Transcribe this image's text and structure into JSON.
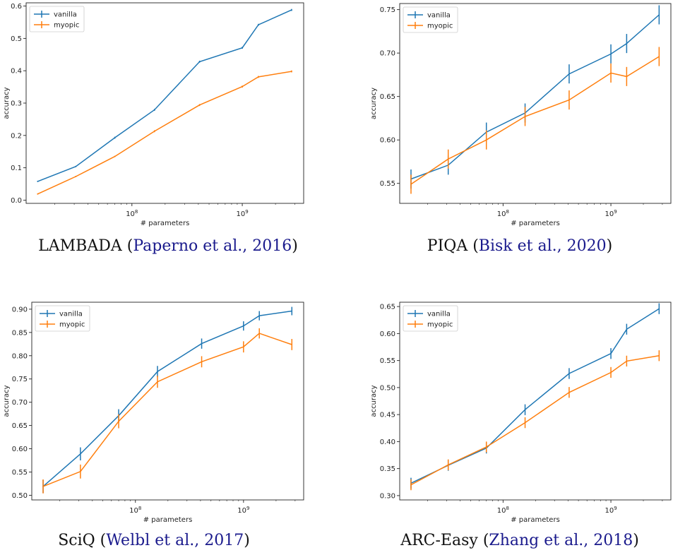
{
  "colors": {
    "vanilla": "#1f77b4",
    "myopic": "#ff7f0e"
  },
  "chart_data": [
    {
      "type": "line",
      "title": "",
      "caption": {
        "name": "LAMBADA",
        "cite": "Paperno et al., 2016"
      },
      "xlabel": "# parameters",
      "ylabel": "accuracy",
      "xscale": "log",
      "xlim": [
        11000000,
        3600000000
      ],
      "ylim": [
        -0.01,
        0.61
      ],
      "yticks": [
        0.0,
        0.1,
        0.2,
        0.3,
        0.4,
        0.5,
        0.6
      ],
      "ytick_labels": [
        "0.0",
        "0.1",
        "0.2",
        "0.3",
        "0.4",
        "0.5",
        "0.6"
      ],
      "xticks": [
        100000000,
        1000000000
      ],
      "xtick_labels": [
        "10^8",
        "10^9"
      ],
      "x": [
        14000000,
        31000000,
        70000000,
        160000000,
        410000000,
        1000000000,
        1400000000,
        2800000000
      ],
      "legend": "top-left",
      "series": [
        {
          "name": "vanilla",
          "values": [
            0.058,
            0.104,
            0.193,
            0.279,
            0.428,
            0.471,
            0.542,
            0.588
          ],
          "errors": [
            0.002,
            0.002,
            0.003,
            0.003,
            0.003,
            0.003,
            0.003,
            0.003
          ]
        },
        {
          "name": "myopic",
          "values": [
            0.019,
            0.073,
            0.135,
            0.213,
            0.294,
            0.351,
            0.381,
            0.398
          ],
          "errors": [
            0.002,
            0.002,
            0.002,
            0.003,
            0.003,
            0.003,
            0.003,
            0.003
          ]
        }
      ]
    },
    {
      "type": "line",
      "title": "",
      "caption": {
        "name": "PIQA",
        "cite": "Bisk et al., 2020"
      },
      "xlabel": "# parameters",
      "ylabel": "accuracy",
      "xscale": "log",
      "xlim": [
        11000000,
        3600000000
      ],
      "ylim": [
        0.527,
        0.757
      ],
      "yticks": [
        0.55,
        0.6,
        0.65,
        0.7,
        0.75
      ],
      "ytick_labels": [
        "0.55",
        "0.60",
        "0.65",
        "0.70",
        "0.75"
      ],
      "xticks": [
        100000000,
        1000000000
      ],
      "xtick_labels": [
        "10^8",
        "10^9"
      ],
      "x": [
        14000000,
        31000000,
        70000000,
        160000000,
        410000000,
        1000000000,
        1400000000,
        2800000000
      ],
      "legend": "top-left",
      "series": [
        {
          "name": "vanilla",
          "values": [
            0.555,
            0.571,
            0.609,
            0.631,
            0.676,
            0.699,
            0.711,
            0.744
          ],
          "errors": [
            0.011,
            0.011,
            0.011,
            0.011,
            0.011,
            0.011,
            0.011,
            0.011
          ]
        },
        {
          "name": "myopic",
          "values": [
            0.549,
            0.578,
            0.6,
            0.627,
            0.646,
            0.677,
            0.673,
            0.696
          ],
          "errors": [
            0.011,
            0.011,
            0.011,
            0.011,
            0.011,
            0.011,
            0.011,
            0.011
          ]
        }
      ]
    },
    {
      "type": "line",
      "title": "",
      "caption": {
        "name": "SciQ",
        "cite": "Welbl et al., 2017"
      },
      "xlabel": "# parameters",
      "ylabel": "accuracy",
      "xscale": "log",
      "xlim": [
        11000000,
        3600000000
      ],
      "ylim": [
        0.49,
        0.915
      ],
      "yticks": [
        0.5,
        0.55,
        0.6,
        0.65,
        0.7,
        0.75,
        0.8,
        0.85,
        0.9
      ],
      "ytick_labels": [
        "0.50",
        "0.55",
        "0.60",
        "0.65",
        "0.70",
        "0.75",
        "0.80",
        "0.85",
        "0.90"
      ],
      "xticks": [
        100000000,
        1000000000
      ],
      "xtick_labels": [
        "10^8",
        "10^9"
      ],
      "x": [
        14000000,
        31000000,
        70000000,
        160000000,
        410000000,
        1000000000,
        1400000000,
        2800000000
      ],
      "legend": "top-left",
      "series": [
        {
          "name": "vanilla",
          "values": [
            0.519,
            0.589,
            0.671,
            0.766,
            0.826,
            0.864,
            0.886,
            0.896
          ],
          "errors": [
            0.014,
            0.014,
            0.014,
            0.012,
            0.011,
            0.01,
            0.01,
            0.009
          ]
        },
        {
          "name": "myopic",
          "values": [
            0.519,
            0.551,
            0.659,
            0.744,
            0.787,
            0.819,
            0.848,
            0.824
          ],
          "errors": [
            0.015,
            0.015,
            0.015,
            0.013,
            0.012,
            0.012,
            0.011,
            0.012
          ]
        }
      ]
    },
    {
      "type": "line",
      "title": "",
      "caption": {
        "name": "ARC-Easy",
        "cite": "Zhang et al., 2018"
      },
      "xlabel": "# parameters",
      "ylabel": "accuracy",
      "xscale": "log",
      "xlim": [
        11000000,
        3600000000
      ],
      "ylim": [
        0.292,
        0.658
      ],
      "yticks": [
        0.3,
        0.35,
        0.4,
        0.45,
        0.5,
        0.55,
        0.6,
        0.65
      ],
      "ytick_labels": [
        "0.30",
        "0.35",
        "0.40",
        "0.45",
        "0.50",
        "0.55",
        "0.60",
        "0.65"
      ],
      "xticks": [
        100000000,
        1000000000
      ],
      "xtick_labels": [
        "10^8",
        "10^9"
      ],
      "x": [
        14000000,
        31000000,
        70000000,
        160000000,
        410000000,
        1000000000,
        1400000000,
        2800000000
      ],
      "legend": "top-left",
      "series": [
        {
          "name": "vanilla",
          "values": [
            0.323,
            0.356,
            0.388,
            0.459,
            0.526,
            0.563,
            0.608,
            0.646
          ],
          "errors": [
            0.01,
            0.01,
            0.01,
            0.01,
            0.01,
            0.01,
            0.01,
            0.01
          ]
        },
        {
          "name": "myopic",
          "values": [
            0.32,
            0.357,
            0.39,
            0.435,
            0.491,
            0.528,
            0.549,
            0.559
          ],
          "errors": [
            0.01,
            0.01,
            0.01,
            0.01,
            0.01,
            0.01,
            0.01,
            0.01
          ]
        }
      ]
    }
  ]
}
